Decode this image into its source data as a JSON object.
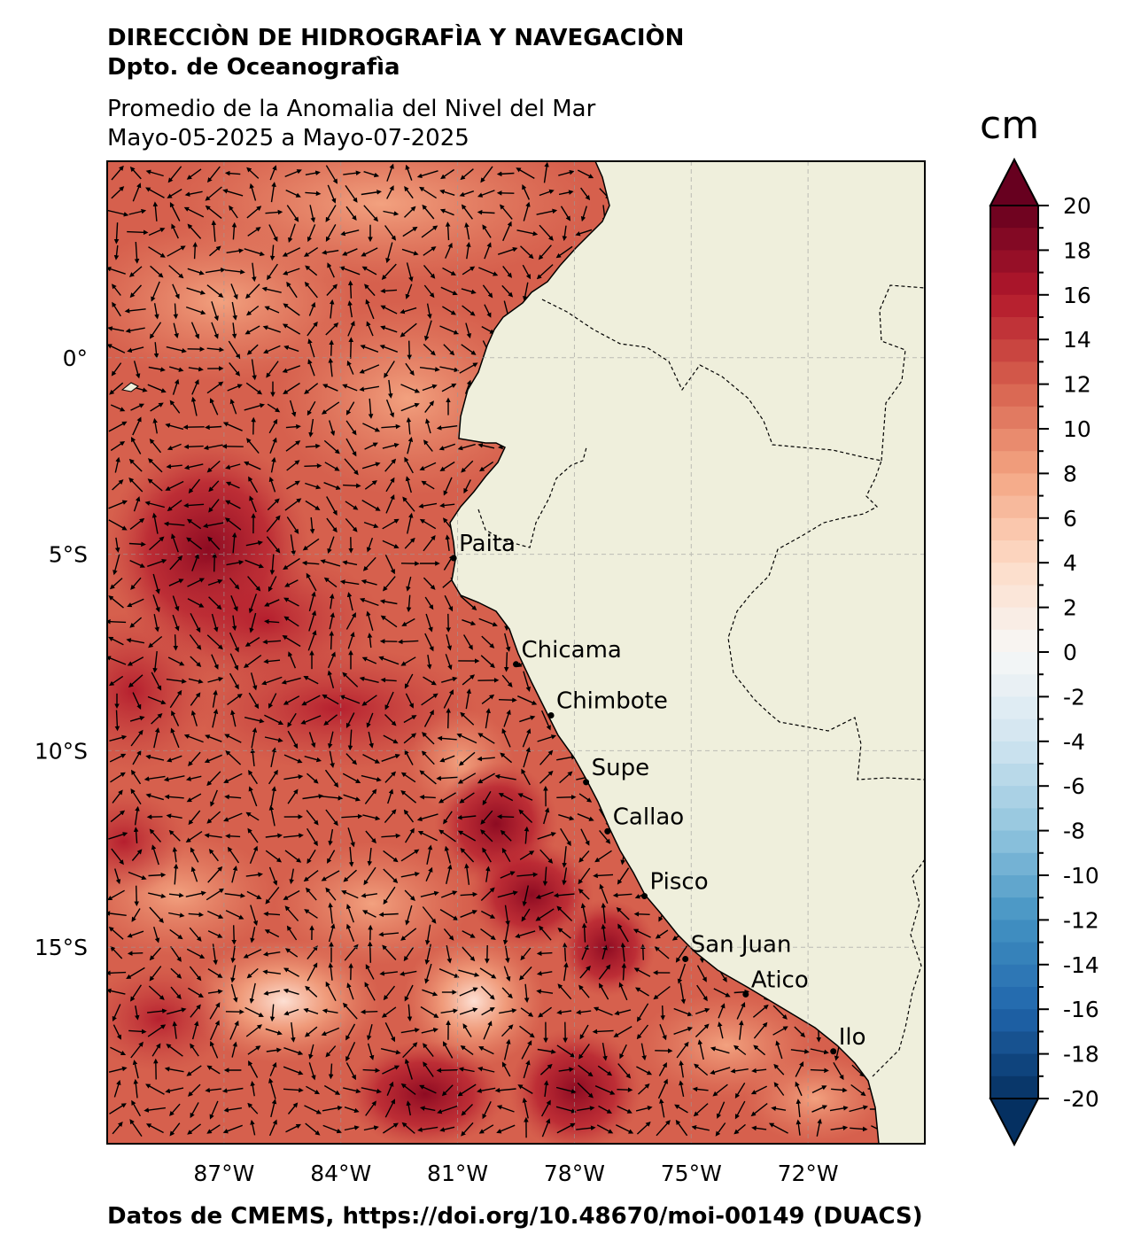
{
  "header": {
    "institution": "DIRECCIÒN DE HIDROGRAFÌA Y NAVEGACIÒN",
    "department": "Dpto. de Oceanografìa",
    "title": "Promedio de la Anomalia del Nivel del Mar",
    "period": "Mayo-05-2025 a Mayo-07-2025"
  },
  "footer": {
    "source": "Datos de CMEMS, https://doi.org/10.48670/moi-00149 (DUACS)"
  },
  "map": {
    "lon_ticks": [
      "87°W",
      "84°W",
      "81°W",
      "78°W",
      "75°W",
      "72°W"
    ],
    "lat_ticks": [
      "0°",
      "5°S",
      "10°S",
      "15°S"
    ],
    "lon_range": [
      -90,
      -69
    ],
    "lat_range": [
      -20,
      5
    ],
    "colors": {
      "land": "#efefdc",
      "ocean_base": "#d6604d",
      "anomaly_high": "#a50f25"
    },
    "ports": [
      {
        "name": "Paita",
        "lon": -81.1,
        "lat": -5.1
      },
      {
        "name": "Chicama",
        "lon": -79.5,
        "lat": -7.8
      },
      {
        "name": "Chimbote",
        "lon": -78.6,
        "lat": -9.1
      },
      {
        "name": "Supe",
        "lon": -77.7,
        "lat": -10.8
      },
      {
        "name": "Callao",
        "lon": -77.15,
        "lat": -12.05
      },
      {
        "name": "Pisco",
        "lon": -76.2,
        "lat": -13.7
      },
      {
        "name": "San Juan",
        "lon": -75.15,
        "lat": -15.3
      },
      {
        "name": "Atico",
        "lon": -73.6,
        "lat": -16.2
      },
      {
        "name": "Ilo",
        "lon": -71.35,
        "lat": -17.65
      }
    ]
  },
  "colorbar": {
    "unit": "cm",
    "min": -20,
    "max": 20,
    "step": 1,
    "tick_labels": [
      "20",
      "18",
      "16",
      "14",
      "12",
      "10",
      "8",
      "6",
      "4",
      "2",
      "0",
      "-2",
      "-4",
      "-6",
      "-8",
      "-10",
      "-12",
      "-14",
      "-16",
      "-18",
      "-20"
    ],
    "colormap": "RdBu_r"
  }
}
